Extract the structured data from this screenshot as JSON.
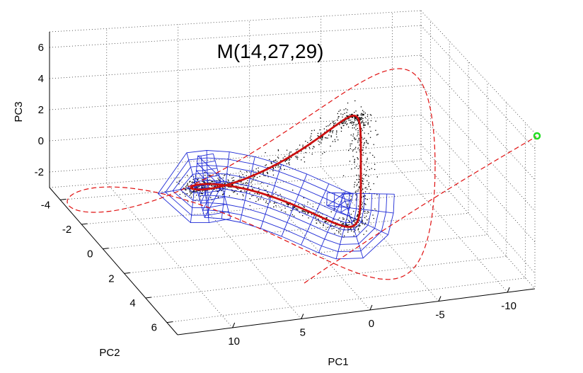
{
  "chart_data": {
    "type": "scatter3d",
    "title": "M(14,27,29)",
    "xlabel": "PC1",
    "ylabel": "PC2",
    "zlabel": "PC3",
    "x_ticks": [
      "10",
      "5",
      "0",
      "-5",
      "-10"
    ],
    "y_ticks": [
      "-4",
      "-2",
      "0",
      "2",
      "4",
      "6"
    ],
    "z_ticks": [
      "6",
      "4",
      "2",
      "0",
      "-2"
    ],
    "xlim": [
      -12,
      14
    ],
    "ylim": [
      -5,
      7
    ],
    "zlim": [
      -3,
      7
    ],
    "grid": true,
    "series": [
      {
        "kind": "scatter",
        "color": "#000000"
      },
      {
        "kind": "mesh",
        "color": "#1f2bd6"
      },
      {
        "kind": "curve",
        "style": "solid",
        "color": "#cc1010"
      },
      {
        "kind": "curve",
        "style": "dashed",
        "color": "#e01010"
      },
      {
        "kind": "point",
        "color": "#22dd22"
      }
    ]
  }
}
